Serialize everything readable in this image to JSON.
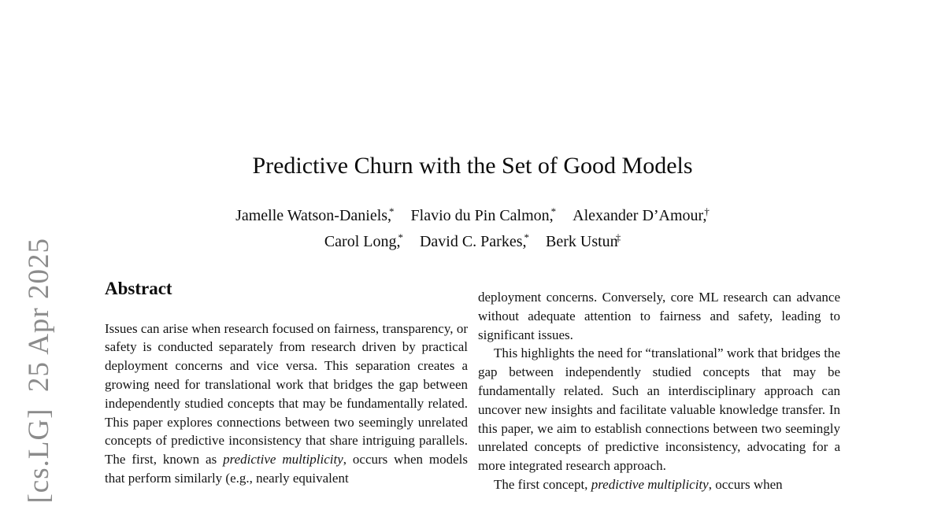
{
  "stamp": {
    "text": "[cs.LG]  25 Apr 2025",
    "color": "#8b8b8b"
  },
  "paper": {
    "title": "Predictive Churn with the Set of Good Models",
    "authors_line1": [
      {
        "name": "Jamelle Watson-Daniels,",
        "mark": "*"
      },
      {
        "name": "Flavio du Pin Calmon,",
        "mark": "*"
      },
      {
        "name": "Alexander D’Amour,",
        "mark": "†"
      }
    ],
    "authors_line2": [
      {
        "name": "Carol Long,",
        "mark": "*"
      },
      {
        "name": "David C. Parkes,",
        "mark": "*"
      },
      {
        "name": "Berk Ustun",
        "mark": "‡"
      }
    ]
  },
  "abstract": {
    "heading": "Abstract",
    "p1_pre": "Issues can arise when research focused on fairness, transparency, or safety is conducted separately from research driven by practical deployment concerns and vice versa. This separation creates a growing need for translational work that bridges the gap between independently studied concepts that may be fundamentally related. This paper explores connections between two seemingly unrelated concepts of predictive inconsistency that share intriguing parallels. The first, known as ",
    "p1_italic": "predictive multiplicity",
    "p1_post": ", occurs when models that perform similarly (e.g., nearly equivalent"
  },
  "column2": {
    "p1": "deployment concerns. Conversely, core ML research can advance without adequate attention to fairness and safety, leading to significant issues.",
    "p2": "This highlights the need for “translational” work that bridges the gap between independently studied concepts that may be fundamentally related. Such an interdisciplinary approach can uncover new insights and facilitate valuable knowledge transfer. In this paper, we aim to establish connections between two seemingly unrelated concepts of predictive inconsistency, advocating for a more integrated research approach.",
    "p3_pre": "The first concept, ",
    "p3_italic": "predictive multiplicity",
    "p3_post": ", occurs when"
  }
}
